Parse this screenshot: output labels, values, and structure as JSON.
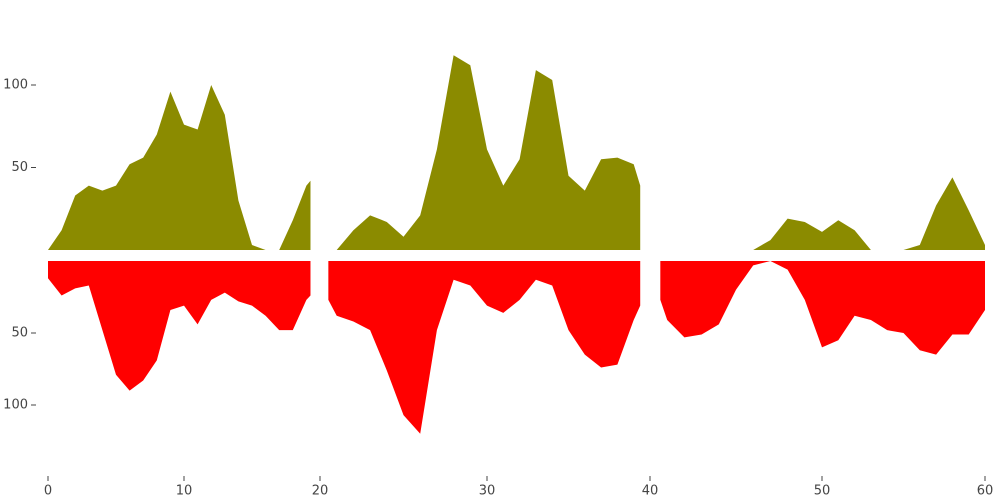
{
  "chart_data": {
    "type": "area",
    "x": [
      0,
      1,
      2,
      3,
      4,
      5,
      6,
      7,
      8,
      9,
      10,
      11,
      12,
      13,
      14,
      15,
      16,
      17,
      18,
      19,
      19.3,
      19.7,
      20.5,
      21,
      22,
      23,
      24,
      25,
      26,
      27,
      28,
      29,
      30,
      31,
      32,
      33,
      34,
      35,
      36,
      37,
      38,
      39,
      39.4,
      40.1,
      40.6,
      41,
      42,
      43,
      44,
      45,
      46,
      47,
      48,
      49,
      50,
      51,
      52,
      53,
      54,
      55,
      56,
      57,
      58,
      59,
      60
    ],
    "series": [
      {
        "color": "#8b8b00",
        "values": [
          0,
          12,
          33,
          39,
          36,
          39,
          52,
          56,
          70,
          96,
          76,
          73,
          100,
          82,
          30,
          3,
          0,
          0,
          18,
          39,
          42,
          null,
          0,
          0,
          12,
          21,
          17,
          8,
          21,
          61,
          118,
          112,
          61,
          39,
          55,
          109,
          103,
          45,
          36,
          55,
          56,
          52,
          39,
          null,
          0,
          0,
          0,
          0,
          0,
          0,
          0,
          6,
          19,
          17,
          11,
          18,
          12,
          0,
          0,
          0,
          3,
          27,
          44,
          24,
          3
        ]
      },
      {
        "color": "#ff0000",
        "axis": "y2",
        "values": [
          12,
          24,
          19,
          17,
          48,
          79,
          90,
          83,
          69,
          34,
          31,
          44,
          27,
          22,
          28,
          31,
          38,
          48,
          48,
          27,
          24,
          null,
          27,
          38,
          42,
          48,
          76,
          107,
          120,
          48,
          13,
          17,
          31,
          36,
          27,
          13,
          17,
          48,
          65,
          74,
          72,
          41,
          31,
          null,
          27,
          41,
          53,
          51,
          44,
          20,
          3,
          0,
          6,
          27,
          60,
          55,
          38,
          41,
          48,
          50,
          62,
          65,
          51,
          51,
          34
        ]
      }
    ],
    "xlim": [
      0,
      60
    ],
    "xticks": [
      0,
      10,
      20,
      30,
      40,
      50,
      60
    ],
    "ylim": [
      0,
      130
    ],
    "yticks": [
      50,
      100
    ],
    "y2lim": [
      0,
      140
    ],
    "y2ticks": [
      50,
      100
    ]
  }
}
